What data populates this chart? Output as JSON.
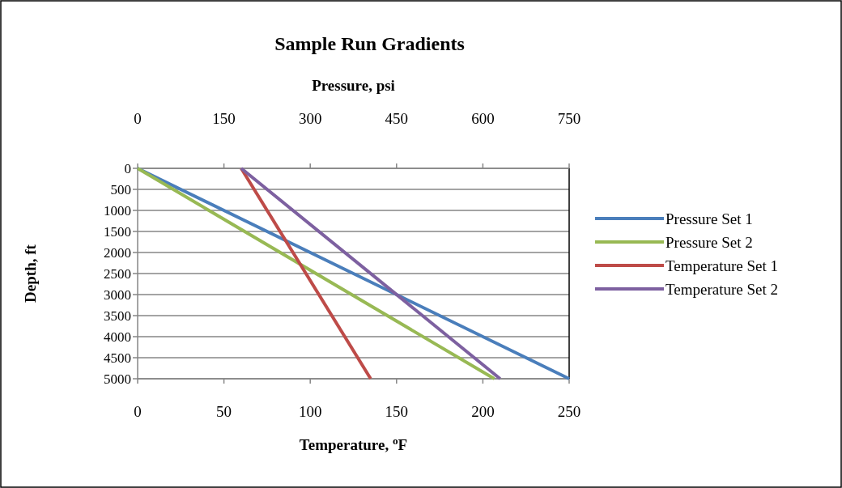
{
  "chart_data": {
    "type": "line",
    "title": "Sample Run Gradients",
    "xlabel": "Temperature, $^{o}$F",
    "x2label": "Pressure, psi",
    "ylabel": "Depth, ft",
    "xlim": [
      0,
      250
    ],
    "xticks": [
      0,
      50,
      100,
      150,
      200,
      250
    ],
    "x2lim": [
      0,
      750
    ],
    "x2ticks": [
      0,
      150,
      300,
      450,
      600,
      750
    ],
    "ylim": [
      5000,
      0
    ],
    "yticks": [
      0,
      500,
      1000,
      1500,
      2000,
      2500,
      3000,
      3500,
      4000,
      4500,
      5000
    ],
    "grid": "y",
    "legend": "right",
    "marker": "none",
    "line_style": "solid",
    "series": [
      {
        "name": "Pressure  Set 1",
        "color": "#4a7ebb",
        "axis": "x2",
        "x": [
          0,
          750
        ],
        "values": [
          0,
          5000
        ]
      },
      {
        "name": "Pressure  Set 2",
        "color": "#98b954",
        "axis": "x2",
        "x": [
          0,
          620
        ],
        "values": [
          0,
          5000
        ]
      },
      {
        "name": "Temperature Set 1",
        "color": "#be4b48",
        "x": [
          60,
          135
        ],
        "values": [
          0,
          5000
        ]
      },
      {
        "name": "Temperature Set 2",
        "color": "#7d60a0",
        "x": [
          60,
          210
        ],
        "values": [
          0,
          5000
        ]
      }
    ]
  }
}
